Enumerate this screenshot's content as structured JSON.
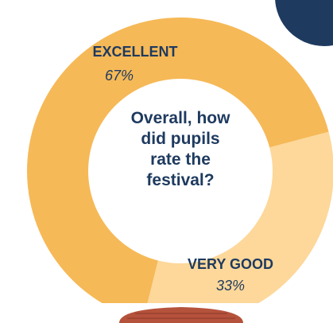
{
  "chart_data": {
    "type": "pie",
    "title": "Overall, how did pupils rate the festival?",
    "categories": [
      "EXCELLENT",
      "VERY GOOD"
    ],
    "values": [
      67,
      33
    ],
    "value_labels": [
      "67%",
      "33%"
    ],
    "colors": [
      "#f6b957",
      "#fdd89a"
    ]
  }
}
